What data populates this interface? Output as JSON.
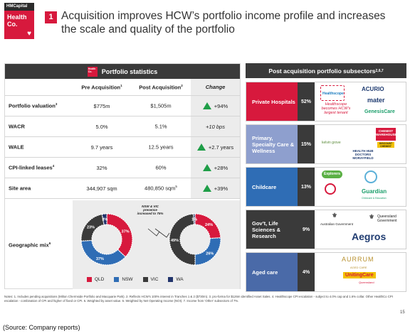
{
  "logo": {
    "top": "HMCapital",
    "line1": "Health",
    "line2": "Co."
  },
  "slide": {
    "number": "1",
    "title": "Acquisition improves HCW’s portfolio income profile and increases the scale and quality of the portfolio"
  },
  "stats": {
    "mini_logo": "Health Co.",
    "title": "Portfolio statistics",
    "headers": {
      "pre": "Pre Acquisition",
      "pre_sup": "1",
      "post": "Post Acquisition",
      "post_sup": "2",
      "change": "Change"
    },
    "rows": [
      {
        "label": "Portfolio valuation",
        "label_sup": "3",
        "pre": "$775m",
        "post": "$1,505m",
        "post_sup": "",
        "change": "+94%",
        "arrow": true
      },
      {
        "label": "WACR",
        "label_sup": "",
        "pre": "5.0%",
        "post": "5.1%",
        "post_sup": "",
        "change": "+10 bps",
        "arrow": false
      },
      {
        "label": "WALE",
        "label_sup": "",
        "pre": "9.7 years",
        "post": "12.5 years",
        "post_sup": "",
        "change": "+2.7 years",
        "arrow": true
      },
      {
        "label": "CPI-linked leases",
        "label_sup": "4",
        "pre": "32%",
        "post": "60%",
        "post_sup": "",
        "change": "+28%",
        "arrow": true
      },
      {
        "label": "Site area",
        "label_sup": "",
        "pre": "344,907 sqm",
        "post": "480,850 sqm",
        "post_sup": "5",
        "change": "+39%",
        "arrow": true
      }
    ],
    "geo_label": "Geographic mix",
    "geo_label_sup": "6",
    "geo_annotation": "NSW & VIC presence increased to 75%"
  },
  "chart_data": [
    {
      "type": "pie",
      "title": "",
      "labels": [
        "QLD",
        "NSW",
        "VIC",
        "WA"
      ],
      "values": [
        37,
        37,
        23,
        3
      ],
      "value_labels": [
        "37%",
        "37%",
        "23%",
        "3%"
      ],
      "colors": [
        "#d7193d",
        "#2f6db5",
        "#3a3a3a",
        "#21346b"
      ]
    },
    {
      "type": "pie",
      "title": "",
      "labels": [
        "QLD",
        "NSW",
        "VIC",
        "WA"
      ],
      "values": [
        24,
        26,
        49,
        1
      ],
      "value_labels": [
        "24%",
        "26%",
        "49%",
        "1%"
      ],
      "colors": [
        "#d7193d",
        "#2f6db5",
        "#3a3a3a",
        "#21346b"
      ]
    }
  ],
  "legend": [
    {
      "label": "QLD",
      "color": "#d7193d"
    },
    {
      "label": "NSW",
      "color": "#2f6db5"
    },
    {
      "label": "VIC",
      "color": "#3a3a3a"
    },
    {
      "label": "WA",
      "color": "#21346b"
    }
  ],
  "subsectors": {
    "title": "Post acquisition portfolio subsectors",
    "title_sup": "2,6,7",
    "items": [
      {
        "label": "Private Hospitals",
        "pct": "52%",
        "color": "#d7193d"
      },
      {
        "label": "Primary, Specialty Care & Wellness",
        "pct": "15%",
        "color": "#8e9fce"
      },
      {
        "label": "Childcare",
        "pct": "13%",
        "color": "#2f6db5"
      },
      {
        "label": "Gov’t, Life Sciences & Research",
        "pct": "9%",
        "color": "#3a3a3a"
      },
      {
        "label": "Aged care",
        "pct": "4%",
        "color": "#4a6aa8"
      }
    ],
    "logos": {
      "healthscope": "Healthscope",
      "healthscope_note": "Healthscope becomes HCW’s largest tenant",
      "acurio": "ACURIO",
      "mater": "mater",
      "genesis": "GenesisCare",
      "kelvin": "kelvin grove",
      "chemist": "CHEMIST WAREHOUSE",
      "discount": "DISCOUNT CHEMIST",
      "hhd": "HEALTH HUB DOCTORS MORAYFIELD",
      "explorers": "Explorers",
      "guardian": "Guardian",
      "guardian_sub": "Childcare & Education",
      "aus_gov": "Australian Government",
      "qld_gov": "Queensland Government",
      "aegros": "Aegros",
      "aurrum": "AURRUM",
      "aurrum_sub": "AGED CARE",
      "uniting": "UnitingCare",
      "uniting_sub": "Queensland"
    }
  },
  "notes": "Notes: 1. Includes pending acquisitions (Milton Chermside Portfolio and Macquarie Park). 2. Reflects HCW’s 100% interest in Tranches 1 & 2 ($730m). 3. pro-forma for $126m identified Asset Sales. 4. Healthscope CPI escalation - subject to 4.0% cap and 1.6% collar. Other HealthCo CPI escalation - combination of CPI and higher of fixed or CPI. 6. Weighted by asset value. 6. Weighted by Net Operating Income (NOI). 7. Income from ‘Other’ subsectors of 7%.",
  "page_number": "15",
  "source": "(Source: Company reports)"
}
